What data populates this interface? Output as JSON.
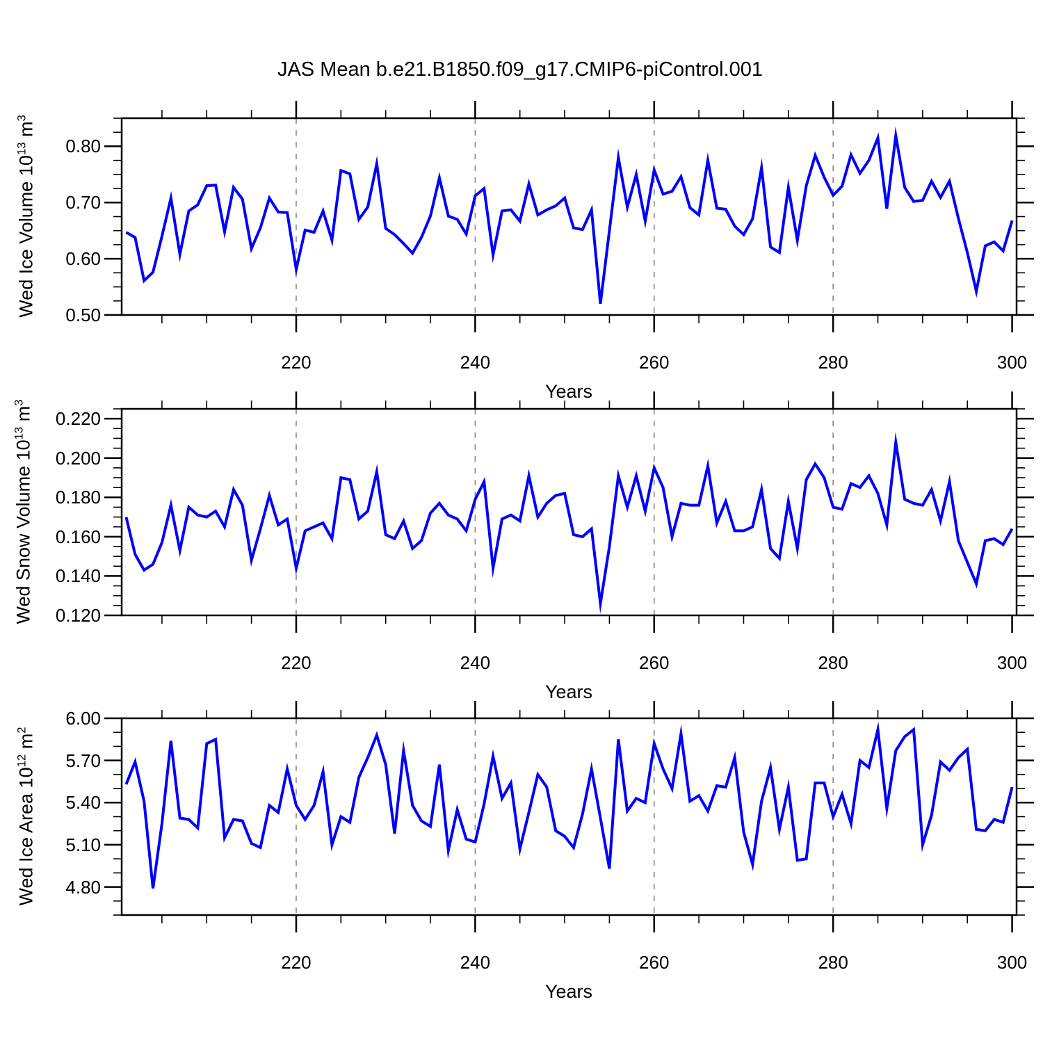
{
  "chart_data": {
    "type": "line",
    "title": "JAS Mean b.e21.B1850.f09_g17.CMIP6-piControl.001",
    "legend": "none",
    "grid": "vertical-dashed",
    "grid_years": [
      220,
      240,
      260,
      280
    ],
    "colors": {
      "line": "#0000ff",
      "grid": "#888888",
      "frame": "#000000",
      "text": "#000000",
      "background": "#ffffff"
    },
    "x_axis": {
      "label": "Years",
      "xlim": [
        200.5,
        300.5
      ],
      "ticks": [
        220,
        240,
        260,
        280,
        300
      ],
      "minor_step": 5
    },
    "years": [
      201,
      202,
      203,
      204,
      205,
      206,
      207,
      208,
      209,
      210,
      211,
      212,
      213,
      214,
      215,
      216,
      217,
      218,
      219,
      220,
      221,
      222,
      223,
      224,
      225,
      226,
      227,
      228,
      229,
      230,
      231,
      232,
      233,
      234,
      235,
      236,
      237,
      238,
      239,
      240,
      241,
      242,
      243,
      244,
      245,
      246,
      247,
      248,
      249,
      250,
      251,
      252,
      253,
      254,
      255,
      256,
      257,
      258,
      259,
      260,
      261,
      262,
      263,
      264,
      265,
      266,
      267,
      268,
      269,
      270,
      271,
      272,
      273,
      274,
      275,
      276,
      277,
      278,
      279,
      280,
      281,
      282,
      283,
      284,
      285,
      286,
      287,
      288,
      289,
      290,
      291,
      292,
      293,
      294,
      295,
      296,
      297,
      298,
      299,
      300
    ],
    "panels": [
      {
        "name": "wed-ice-volume",
        "ylabel": "Wed Ice Volume 10^13^ m^3^",
        "ylim": [
          0.5,
          0.85
        ],
        "yticks": {
          "values": [
            0.5,
            0.6,
            0.7,
            0.8
          ],
          "labels": [
            "0.50",
            "0.60",
            "0.70",
            "0.80"
          ]
        },
        "yminor_step": 0.025,
        "values": [
          0.647,
          0.638,
          0.561,
          0.576,
          0.64,
          0.708,
          0.608,
          0.685,
          0.696,
          0.73,
          0.731,
          0.648,
          0.727,
          0.706,
          0.618,
          0.655,
          0.708,
          0.683,
          0.682,
          0.581,
          0.651,
          0.647,
          0.685,
          0.633,
          0.757,
          0.751,
          0.67,
          0.692,
          0.769,
          0.654,
          0.643,
          0.627,
          0.61,
          0.638,
          0.676,
          0.744,
          0.676,
          0.67,
          0.644,
          0.712,
          0.725,
          0.607,
          0.685,
          0.687,
          0.667,
          0.733,
          0.678,
          0.687,
          0.694,
          0.708,
          0.655,
          0.652,
          0.687,
          0.52,
          0.65,
          0.78,
          0.692,
          0.75,
          0.667,
          0.758,
          0.715,
          0.72,
          0.746,
          0.691,
          0.678,
          0.775,
          0.69,
          0.688,
          0.658,
          0.643,
          0.671,
          0.762,
          0.621,
          0.611,
          0.727,
          0.633,
          0.73,
          0.784,
          0.745,
          0.713,
          0.729,
          0.785,
          0.752,
          0.775,
          0.815,
          0.689,
          0.819,
          0.727,
          0.702,
          0.704,
          0.738,
          0.709,
          0.738,
          0.672,
          0.611,
          0.542,
          0.623,
          0.63,
          0.614,
          0.668
        ]
      },
      {
        "name": "wed-snow-volume",
        "ylabel": "Wed Snow Volume 10^13^ m^3^",
        "ylim": [
          0.12,
          0.225
        ],
        "yticks": {
          "values": [
            0.12,
            0.14,
            0.16,
            0.18,
            0.2,
            0.22
          ],
          "labels": [
            "0.120",
            "0.140",
            "0.160",
            "0.180",
            "0.200",
            "0.220"
          ]
        },
        "yminor_step": 0.005,
        "values": [
          0.17,
          0.151,
          0.143,
          0.146,
          0.157,
          0.176,
          0.153,
          0.175,
          0.171,
          0.17,
          0.173,
          0.165,
          0.184,
          0.176,
          0.148,
          0.164,
          0.181,
          0.166,
          0.169,
          0.144,
          0.163,
          0.165,
          0.167,
          0.159,
          0.19,
          0.189,
          0.169,
          0.173,
          0.193,
          0.161,
          0.159,
          0.168,
          0.154,
          0.158,
          0.172,
          0.177,
          0.171,
          0.169,
          0.163,
          0.179,
          0.188,
          0.144,
          0.169,
          0.171,
          0.168,
          0.191,
          0.17,
          0.177,
          0.181,
          0.182,
          0.161,
          0.16,
          0.164,
          0.126,
          0.155,
          0.191,
          0.175,
          0.191,
          0.173,
          0.195,
          0.185,
          0.16,
          0.177,
          0.176,
          0.176,
          0.196,
          0.167,
          0.178,
          0.163,
          0.163,
          0.165,
          0.184,
          0.154,
          0.149,
          0.178,
          0.154,
          0.189,
          0.197,
          0.19,
          0.175,
          0.174,
          0.187,
          0.185,
          0.191,
          0.182,
          0.166,
          0.208,
          0.179,
          0.177,
          0.176,
          0.184,
          0.168,
          0.188,
          0.158,
          0.147,
          0.136,
          0.158,
          0.159,
          0.156,
          0.164
        ]
      },
      {
        "name": "wed-ice-area",
        "ylabel": "Wed Ice Area 10^12^ m^2^",
        "ylim": [
          4.6,
          6.0
        ],
        "yticks": {
          "values": [
            4.8,
            5.1,
            5.4,
            5.7,
            6.0
          ],
          "labels": [
            "4.80",
            "5.10",
            "5.40",
            "5.70",
            "6.00"
          ]
        },
        "yminor_step": 0.1,
        "values": [
          5.53,
          5.69,
          5.41,
          4.79,
          5.25,
          5.84,
          5.29,
          5.28,
          5.22,
          5.82,
          5.85,
          5.15,
          5.28,
          5.27,
          5.11,
          5.08,
          5.38,
          5.33,
          5.64,
          5.38,
          5.28,
          5.38,
          5.62,
          5.1,
          5.3,
          5.26,
          5.58,
          5.72,
          5.88,
          5.67,
          5.18,
          5.77,
          5.38,
          5.27,
          5.23,
          5.67,
          5.06,
          5.35,
          5.14,
          5.12,
          5.39,
          5.73,
          5.43,
          5.54,
          5.07,
          5.33,
          5.6,
          5.51,
          5.2,
          5.16,
          5.08,
          5.32,
          5.64,
          5.29,
          4.93,
          5.85,
          5.34,
          5.43,
          5.4,
          5.82,
          5.64,
          5.5,
          5.89,
          5.41,
          5.45,
          5.34,
          5.52,
          5.51,
          5.72,
          5.19,
          4.96,
          5.41,
          5.65,
          5.21,
          5.51,
          4.99,
          5.0,
          5.54,
          5.54,
          5.3,
          5.46,
          5.25,
          5.7,
          5.65,
          5.92,
          5.36,
          5.77,
          5.87,
          5.92,
          5.1,
          5.31,
          5.69,
          5.63,
          5.72,
          5.78,
          5.21,
          5.2,
          5.28,
          5.26,
          5.51
        ]
      }
    ]
  }
}
